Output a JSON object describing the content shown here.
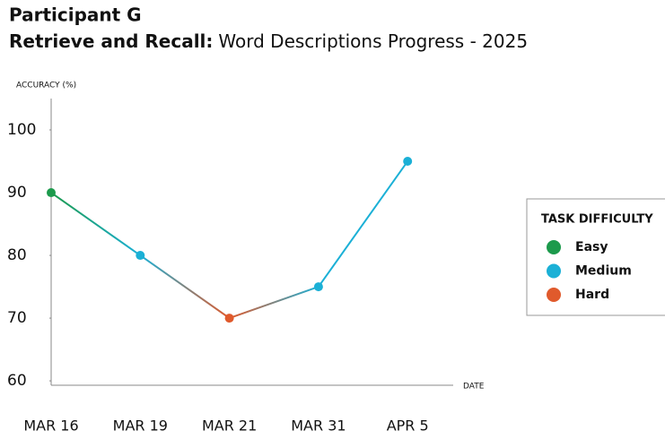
{
  "chart_data": {
    "type": "line",
    "title": "Participant G",
    "subtitle_bold": "Retrieve and Recall:",
    "subtitle": "Word Descriptions Progress - 2025",
    "y_label": "ACCURACY (%)",
    "x_label": "DATE",
    "categories": [
      "MAR 16",
      "MAR 19",
      "MAR 21",
      "MAR 31",
      "APR 5"
    ],
    "values": [
      90,
      80,
      70,
      75,
      95
    ],
    "point_levels": [
      0,
      1,
      2,
      1,
      1
    ],
    "legend": {
      "title": "TASK DIFFICULTY",
      "position": "right",
      "items": [
        {
          "name": "Easy",
          "color": "#1c9a4c"
        },
        {
          "name": "Medium",
          "color": "#1bb0d6"
        },
        {
          "name": "Hard",
          "color": "#e05a2c"
        }
      ]
    },
    "ylim": [
      59.3,
      105
    ],
    "yticks": [
      60,
      70,
      80,
      90,
      100
    ],
    "grid": false
  }
}
